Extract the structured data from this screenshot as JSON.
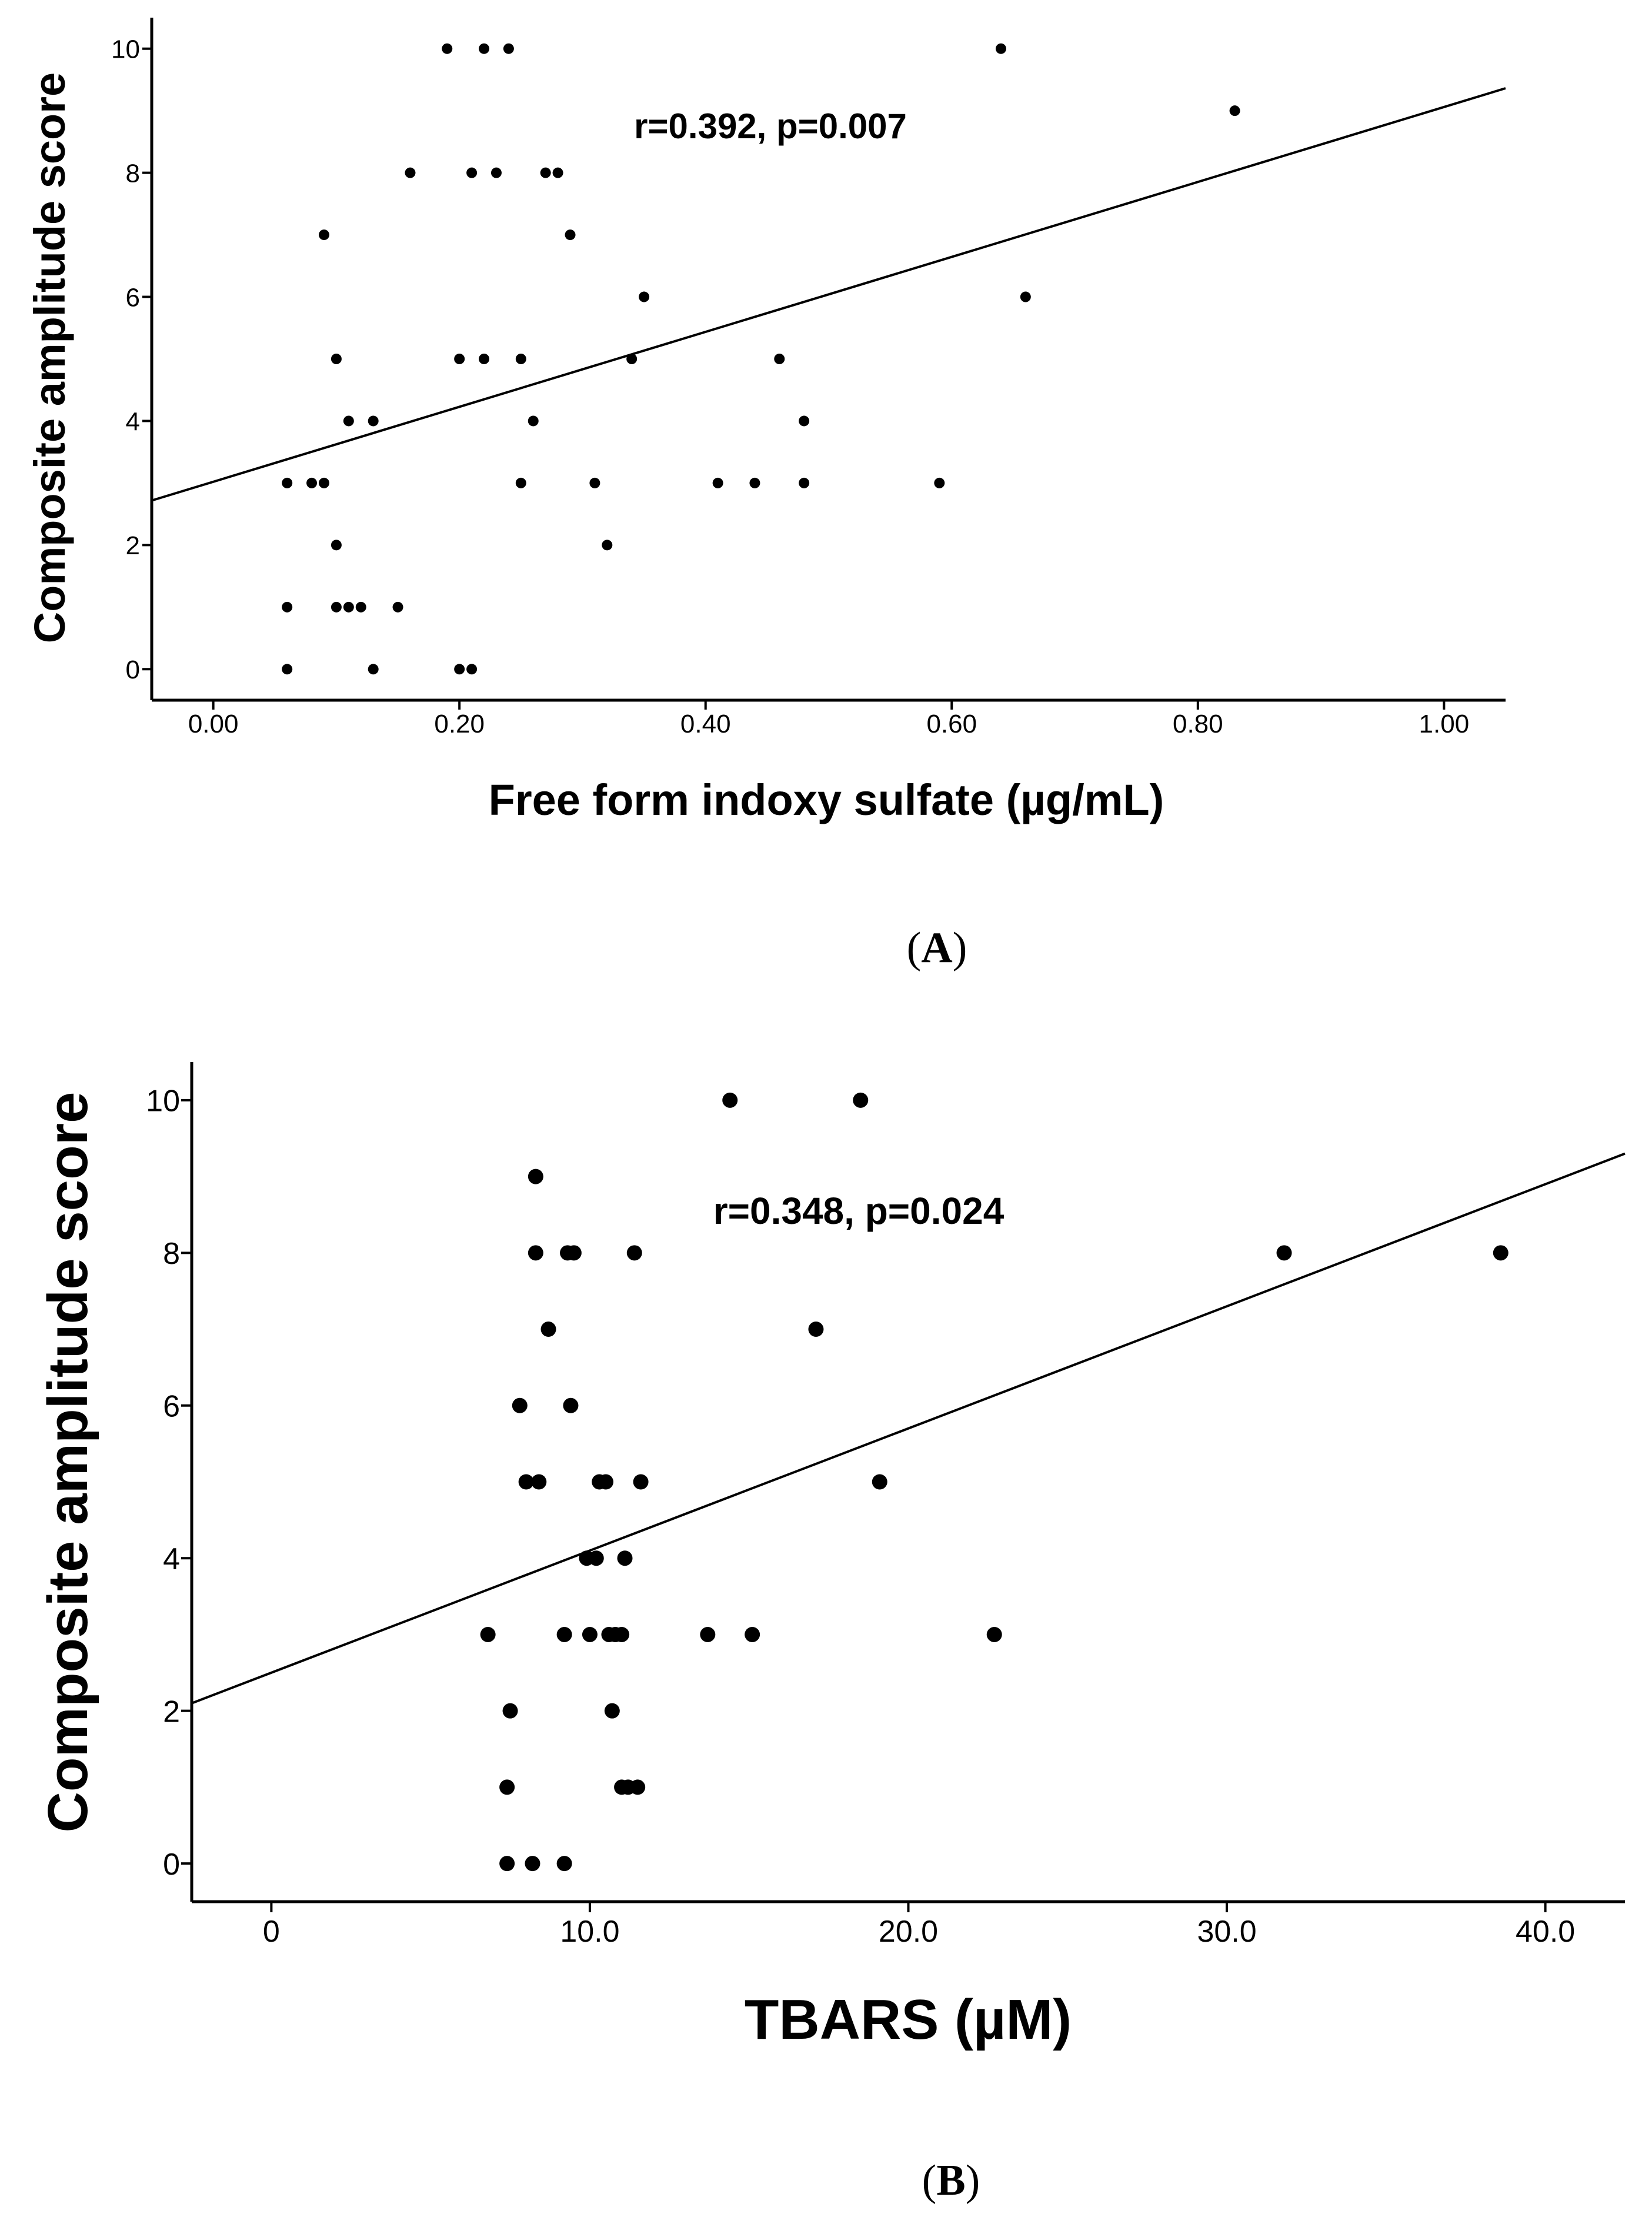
{
  "chart_data": [
    {
      "type": "scatter",
      "panel_label": "A",
      "title": "",
      "xlabel": "Free form indoxy sulfate (µg/mL)",
      "ylabel": "Composite amplitude score",
      "xlim": [
        -0.05,
        1.05
      ],
      "ylim": [
        -0.5,
        10.5
      ],
      "x_ticks": [
        0.0,
        0.2,
        0.4,
        0.6,
        0.8,
        1.0
      ],
      "x_tick_labels": [
        "0.00",
        "0.20",
        "0.40",
        "0.60",
        "0.80",
        "1.00"
      ],
      "y_ticks": [
        0,
        2,
        4,
        6,
        8,
        10
      ],
      "y_tick_labels": [
        "0",
        "2",
        "4",
        "6",
        "8",
        "10"
      ],
      "annotation": "r=0.392,  p=0.007",
      "grid": false,
      "regression": {
        "intercept": 3.02,
        "slope": 6.04
      },
      "points": [
        {
          "x": 0.06,
          "y": 0
        },
        {
          "x": 0.13,
          "y": 0
        },
        {
          "x": 0.2,
          "y": 0
        },
        {
          "x": 0.21,
          "y": 0
        },
        {
          "x": 0.06,
          "y": 1
        },
        {
          "x": 0.1,
          "y": 1
        },
        {
          "x": 0.11,
          "y": 1
        },
        {
          "x": 0.12,
          "y": 1
        },
        {
          "x": 0.15,
          "y": 1
        },
        {
          "x": 0.1,
          "y": 2
        },
        {
          "x": 0.32,
          "y": 2
        },
        {
          "x": 0.06,
          "y": 3
        },
        {
          "x": 0.08,
          "y": 3
        },
        {
          "x": 0.09,
          "y": 3
        },
        {
          "x": 0.25,
          "y": 3
        },
        {
          "x": 0.31,
          "y": 3
        },
        {
          "x": 0.41,
          "y": 3
        },
        {
          "x": 0.44,
          "y": 3
        },
        {
          "x": 0.48,
          "y": 3
        },
        {
          "x": 0.59,
          "y": 3
        },
        {
          "x": 0.11,
          "y": 4
        },
        {
          "x": 0.13,
          "y": 4
        },
        {
          "x": 0.26,
          "y": 4
        },
        {
          "x": 0.48,
          "y": 4
        },
        {
          "x": 0.1,
          "y": 5
        },
        {
          "x": 0.2,
          "y": 5
        },
        {
          "x": 0.22,
          "y": 5
        },
        {
          "x": 0.25,
          "y": 5
        },
        {
          "x": 0.34,
          "y": 5
        },
        {
          "x": 0.46,
          "y": 5
        },
        {
          "x": 0.35,
          "y": 6
        },
        {
          "x": 0.66,
          "y": 6
        },
        {
          "x": 0.09,
          "y": 7
        },
        {
          "x": 0.29,
          "y": 7
        },
        {
          "x": 0.16,
          "y": 8
        },
        {
          "x": 0.21,
          "y": 8
        },
        {
          "x": 0.23,
          "y": 8
        },
        {
          "x": 0.27,
          "y": 8
        },
        {
          "x": 0.28,
          "y": 8
        },
        {
          "x": 0.83,
          "y": 9
        },
        {
          "x": 0.19,
          "y": 10
        },
        {
          "x": 0.22,
          "y": 10
        },
        {
          "x": 0.24,
          "y": 10
        },
        {
          "x": 0.64,
          "y": 10
        }
      ]
    },
    {
      "type": "scatter",
      "panel_label": "B",
      "title": "",
      "xlabel": "TBARS (µM)",
      "ylabel": "Composite amplitude score",
      "xlim": [
        -2.5,
        42.5
      ],
      "ylim": [
        -0.5,
        10.5
      ],
      "x_ticks": [
        0,
        10,
        20,
        30,
        40
      ],
      "x_tick_labels": [
        "0",
        "10.0",
        "20.0",
        "30.0",
        "40.0"
      ],
      "y_ticks": [
        0,
        2,
        4,
        6,
        8,
        10
      ],
      "y_tick_labels": [
        "0",
        "2",
        "4",
        "6",
        "8",
        "10"
      ],
      "annotation": "r=0.348,  p=0.024",
      "grid": false,
      "regression": {
        "intercept": 2.5,
        "slope": 0.16
      },
      "points": [
        {
          "x": 7.4,
          "y": 0
        },
        {
          "x": 8.2,
          "y": 0
        },
        {
          "x": 9.2,
          "y": 0
        },
        {
          "x": 7.4,
          "y": 1
        },
        {
          "x": 11.0,
          "y": 1
        },
        {
          "x": 11.2,
          "y": 1
        },
        {
          "x": 11.5,
          "y": 1
        },
        {
          "x": 7.5,
          "y": 2
        },
        {
          "x": 10.7,
          "y": 2
        },
        {
          "x": 6.8,
          "y": 3
        },
        {
          "x": 9.2,
          "y": 3
        },
        {
          "x": 10.0,
          "y": 3
        },
        {
          "x": 10.6,
          "y": 3
        },
        {
          "x": 10.8,
          "y": 3
        },
        {
          "x": 11.0,
          "y": 3
        },
        {
          "x": 13.7,
          "y": 3
        },
        {
          "x": 15.1,
          "y": 3
        },
        {
          "x": 22.7,
          "y": 3
        },
        {
          "x": 9.9,
          "y": 4
        },
        {
          "x": 10.2,
          "y": 4
        },
        {
          "x": 11.1,
          "y": 4
        },
        {
          "x": 8.0,
          "y": 5
        },
        {
          "x": 8.4,
          "y": 5
        },
        {
          "x": 10.3,
          "y": 5
        },
        {
          "x": 10.5,
          "y": 5
        },
        {
          "x": 11.6,
          "y": 5
        },
        {
          "x": 19.1,
          "y": 5
        },
        {
          "x": 7.8,
          "y": 6
        },
        {
          "x": 9.4,
          "y": 6
        },
        {
          "x": 8.7,
          "y": 7
        },
        {
          "x": 17.1,
          "y": 7
        },
        {
          "x": 8.3,
          "y": 8
        },
        {
          "x": 9.3,
          "y": 8
        },
        {
          "x": 9.5,
          "y": 8
        },
        {
          "x": 11.4,
          "y": 8
        },
        {
          "x": 31.8,
          "y": 8
        },
        {
          "x": 38.6,
          "y": 8
        },
        {
          "x": 8.3,
          "y": 9
        },
        {
          "x": 14.4,
          "y": 10
        },
        {
          "x": 18.5,
          "y": 10
        }
      ]
    }
  ]
}
